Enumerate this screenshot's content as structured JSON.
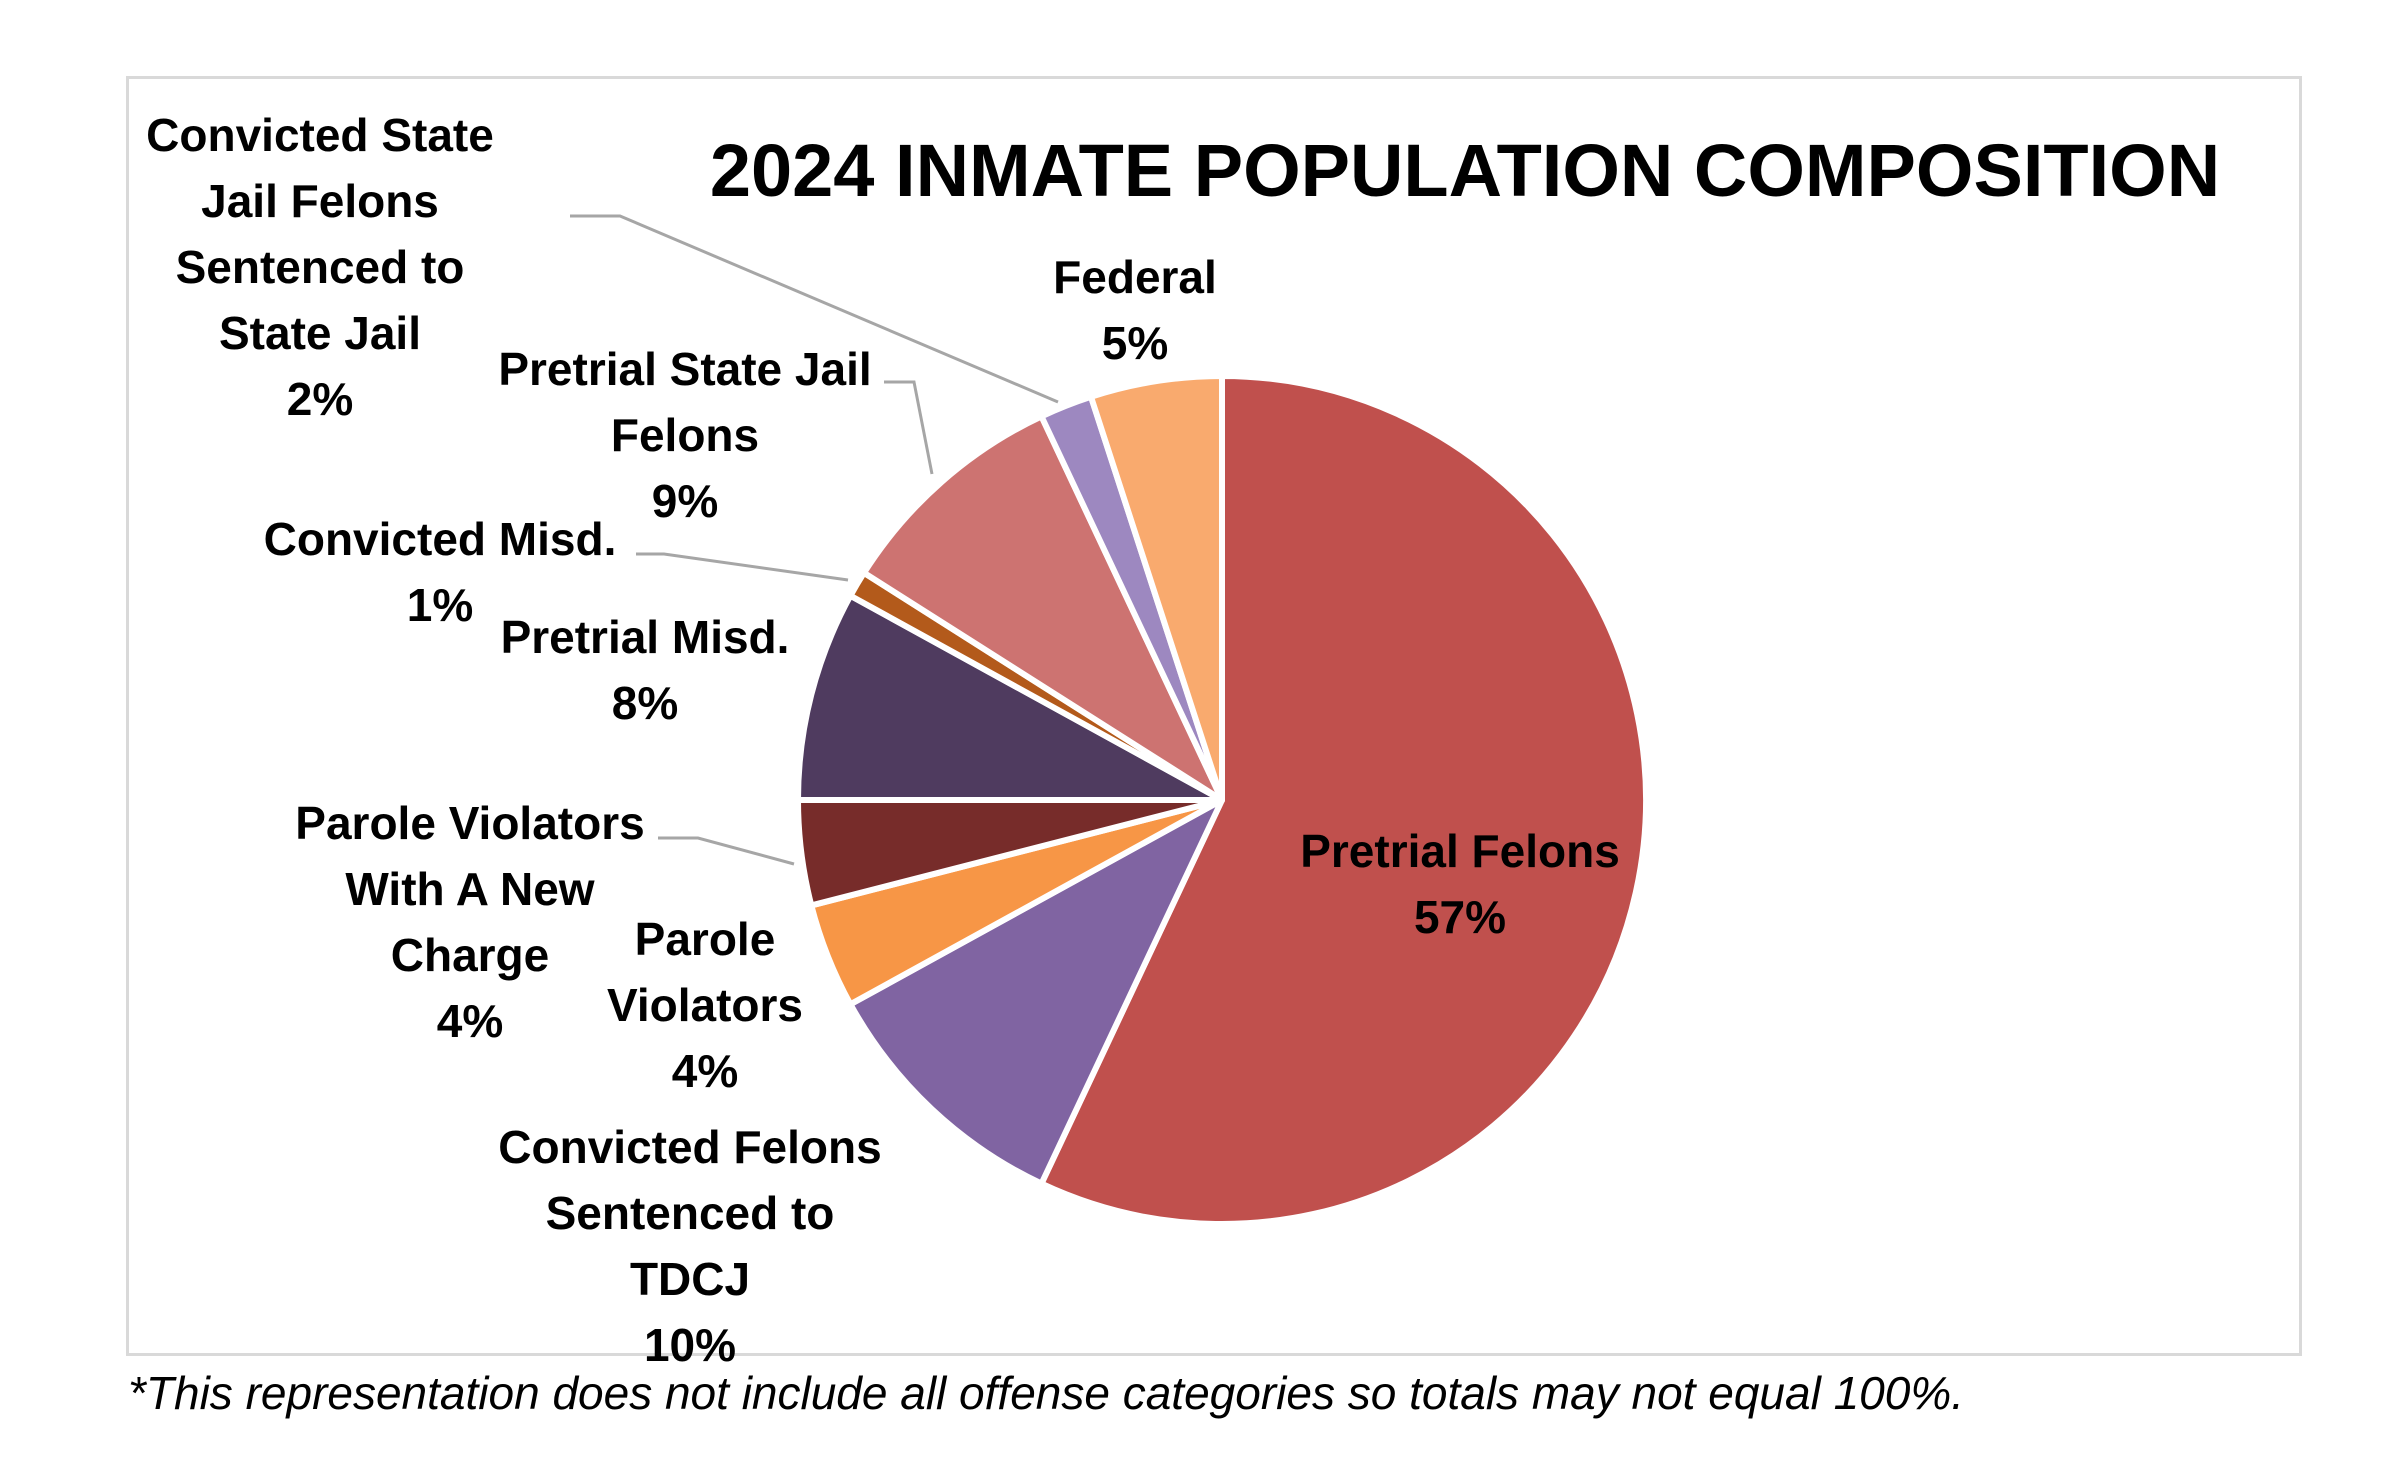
{
  "chart_data": {
    "type": "pie",
    "title": "2024 INMATE POPULATION COMPOSITION",
    "start_angle_deg": 0,
    "direction": "clockwise",
    "slices": [
      {
        "name": "Pretrial Felons",
        "value": 57,
        "label": "57%",
        "color": "#c0504d"
      },
      {
        "name": "Convicted Felons Sentenced to TDCJ",
        "value": 10,
        "label": "10%",
        "color": "#8064a2"
      },
      {
        "name": "Parole Violators",
        "value": 4,
        "label": "4%",
        "color": "#f79646"
      },
      {
        "name": "Parole Violators With A New Charge",
        "value": 4,
        "label": "4%",
        "color": "#772c2a"
      },
      {
        "name": "Pretrial Misd.",
        "value": 8,
        "label": "8%",
        "color": "#4f3b5f"
      },
      {
        "name": "Convicted Misd.",
        "value": 1,
        "label": "1%",
        "color": "#b35a1b"
      },
      {
        "name": "Pretrial State Jail Felons",
        "value": 9,
        "label": "9%",
        "color": "#cd7371"
      },
      {
        "name": "Convicted State Jail Felons Sentenced to State Jail",
        "value": 2,
        "label": "2%",
        "color": "#9d88c0"
      },
      {
        "name": "Federal",
        "value": 5,
        "label": "5%",
        "color": "#f9aa6e"
      }
    ],
    "labels": {
      "pretrial_felons": [
        "Pretrial Felons",
        "57%"
      ],
      "convicted_felons_tdcj": [
        "Convicted Felons",
        "Sentenced to",
        "TDCJ",
        "10%"
      ],
      "parole_violators": [
        "Parole",
        "Violators",
        "4%"
      ],
      "parole_violators_new_charge": [
        "Parole Violators",
        "With A New",
        "Charge",
        "4%"
      ],
      "pretrial_misd": [
        "Pretrial Misd.",
        "8%"
      ],
      "convicted_misd": [
        "Convicted Misd.",
        "1%"
      ],
      "pretrial_state_jail": [
        "Pretrial State Jail",
        "Felons",
        "9%"
      ],
      "convicted_state_jail": [
        "Convicted State",
        "Jail Felons",
        "Sentenced to",
        "State Jail",
        "2%"
      ],
      "federal": [
        "Federal",
        "5%"
      ]
    },
    "footnote": "*This representation does not include all offense categories so totals may not equal 100%."
  }
}
